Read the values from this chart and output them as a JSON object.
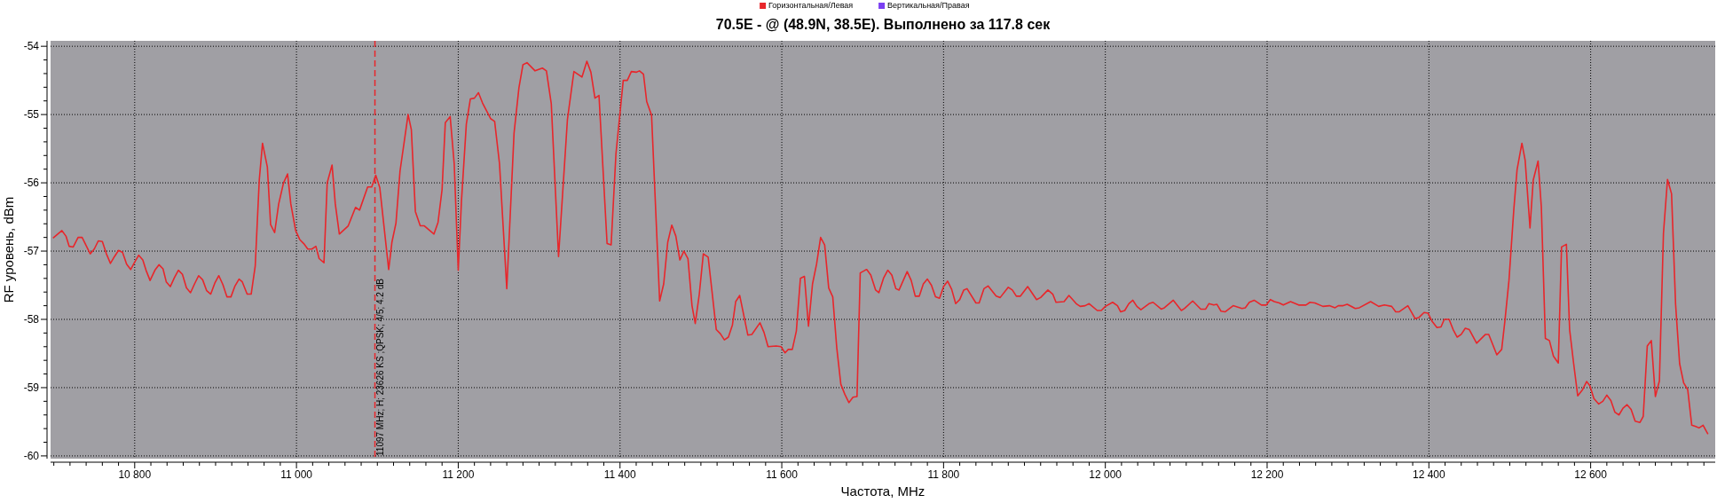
{
  "chart_data": {
    "type": "line",
    "title": "70.5E -  @  (48.9N, 38.5E). Выполнено за 117.8 сек",
    "xlabel": "Частота, MHz",
    "ylabel": "RF уровень, dBm",
    "xlim": [
      10696,
      12754
    ],
    "ylim": [
      -60.04,
      -53.92
    ],
    "xticks": [
      {
        "value": 10700,
        "label": null
      },
      {
        "value": 10720,
        "label": null
      },
      {
        "value": 10740,
        "label": null
      },
      {
        "value": 10760,
        "label": null
      },
      {
        "value": 10780,
        "label": null
      },
      {
        "value": 10800,
        "label": "10 800"
      },
      {
        "value": 10820,
        "label": null
      },
      {
        "value": 10840,
        "label": null
      },
      {
        "value": 10860,
        "label": null
      },
      {
        "value": 10880,
        "label": null
      },
      {
        "value": 10900,
        "label": null
      },
      {
        "value": 10920,
        "label": null
      },
      {
        "value": 10940,
        "label": null
      },
      {
        "value": 10960,
        "label": null
      },
      {
        "value": 10980,
        "label": null
      },
      {
        "value": 11000,
        "label": "11 000"
      },
      {
        "value": 11020,
        "label": null
      },
      {
        "value": 11040,
        "label": null
      },
      {
        "value": 11060,
        "label": null
      },
      {
        "value": 11080,
        "label": null
      },
      {
        "value": 11100,
        "label": null
      },
      {
        "value": 11120,
        "label": null
      },
      {
        "value": 11140,
        "label": null
      },
      {
        "value": 11160,
        "label": null
      },
      {
        "value": 11180,
        "label": null
      },
      {
        "value": 11200,
        "label": "11 200"
      },
      {
        "value": 11220,
        "label": null
      },
      {
        "value": 11240,
        "label": null
      },
      {
        "value": 11260,
        "label": null
      },
      {
        "value": 11280,
        "label": null
      },
      {
        "value": 11300,
        "label": null
      },
      {
        "value": 11320,
        "label": null
      },
      {
        "value": 11340,
        "label": null
      },
      {
        "value": 11360,
        "label": null
      },
      {
        "value": 11380,
        "label": null
      },
      {
        "value": 11400,
        "label": "11 400"
      },
      {
        "value": 11420,
        "label": null
      },
      {
        "value": 11440,
        "label": null
      },
      {
        "value": 11460,
        "label": null
      },
      {
        "value": 11480,
        "label": null
      },
      {
        "value": 11500,
        "label": null
      },
      {
        "value": 11520,
        "label": null
      },
      {
        "value": 11540,
        "label": null
      },
      {
        "value": 11560,
        "label": null
      },
      {
        "value": 11580,
        "label": null
      },
      {
        "value": 11600,
        "label": "11 600"
      },
      {
        "value": 11620,
        "label": null
      },
      {
        "value": 11640,
        "label": null
      },
      {
        "value": 11660,
        "label": null
      },
      {
        "value": 11680,
        "label": null
      },
      {
        "value": 11700,
        "label": null
      },
      {
        "value": 11720,
        "label": null
      },
      {
        "value": 11740,
        "label": null
      },
      {
        "value": 11760,
        "label": null
      },
      {
        "value": 11780,
        "label": null
      },
      {
        "value": 11800,
        "label": "11 800"
      },
      {
        "value": 11820,
        "label": null
      },
      {
        "value": 11840,
        "label": null
      },
      {
        "value": 11860,
        "label": null
      },
      {
        "value": 11880,
        "label": null
      },
      {
        "value": 11900,
        "label": null
      },
      {
        "value": 11920,
        "label": null
      },
      {
        "value": 11940,
        "label": null
      },
      {
        "value": 11960,
        "label": null
      },
      {
        "value": 11980,
        "label": null
      },
      {
        "value": 12000,
        "label": "12 000"
      },
      {
        "value": 12020,
        "label": null
      },
      {
        "value": 12040,
        "label": null
      },
      {
        "value": 12060,
        "label": null
      },
      {
        "value": 12080,
        "label": null
      },
      {
        "value": 12100,
        "label": null
      },
      {
        "value": 12120,
        "label": null
      },
      {
        "value": 12140,
        "label": null
      },
      {
        "value": 12160,
        "label": null
      },
      {
        "value": 12180,
        "label": null
      },
      {
        "value": 12200,
        "label": "12 200"
      },
      {
        "value": 12220,
        "label": null
      },
      {
        "value": 12240,
        "label": null
      },
      {
        "value": 12260,
        "label": null
      },
      {
        "value": 12280,
        "label": null
      },
      {
        "value": 12300,
        "label": null
      },
      {
        "value": 12320,
        "label": null
      },
      {
        "value": 12340,
        "label": null
      },
      {
        "value": 12360,
        "label": null
      },
      {
        "value": 12380,
        "label": null
      },
      {
        "value": 12400,
        "label": "12 400"
      },
      {
        "value": 12420,
        "label": null
      },
      {
        "value": 12440,
        "label": null
      },
      {
        "value": 12460,
        "label": null
      },
      {
        "value": 12480,
        "label": null
      },
      {
        "value": 12500,
        "label": null
      },
      {
        "value": 12520,
        "label": null
      },
      {
        "value": 12540,
        "label": null
      },
      {
        "value": 12560,
        "label": null
      },
      {
        "value": 12580,
        "label": null
      },
      {
        "value": 12600,
        "label": "12 600"
      },
      {
        "value": 12620,
        "label": null
      },
      {
        "value": 12640,
        "label": null
      },
      {
        "value": 12660,
        "label": null
      },
      {
        "value": 12680,
        "label": null
      },
      {
        "value": 12700,
        "label": null
      },
      {
        "value": 12720,
        "label": null
      },
      {
        "value": 12740,
        "label": null
      }
    ],
    "yticks": [
      -60,
      {
        "value": -59.8,
        "label": null
      },
      {
        "value": -59.6,
        "label": null
      },
      {
        "value": -59.4,
        "label": null
      },
      {
        "value": -59.2,
        "label": null
      },
      -59,
      {
        "value": -58.8,
        "label": null
      },
      {
        "value": -58.6,
        "label": null
      },
      {
        "value": -58.4,
        "label": null
      },
      {
        "value": -58.2,
        "label": null
      },
      -58,
      {
        "value": -57.8,
        "label": null
      },
      {
        "value": -57.6,
        "label": null
      },
      {
        "value": -57.4,
        "label": null
      },
      {
        "value": -57.2,
        "label": null
      },
      -57,
      {
        "value": -56.8,
        "label": null
      },
      {
        "value": -56.6,
        "label": null
      },
      {
        "value": -56.4,
        "label": null
      },
      {
        "value": -56.2,
        "label": null
      },
      -56,
      {
        "value": -55.8,
        "label": null
      },
      {
        "value": -55.6,
        "label": null
      },
      {
        "value": -55.4,
        "label": null
      },
      {
        "value": -55.2,
        "label": null
      },
      -55,
      {
        "value": -54.8,
        "label": null
      },
      {
        "value": -54.6,
        "label": null
      },
      {
        "value": -54.4,
        "label": null
      },
      {
        "value": -54.2,
        "label": null
      },
      -54
    ],
    "grid": true,
    "legend": "top",
    "marker": "none",
    "line_style": "solid",
    "ref_lines": [
      {
        "axis": "x",
        "value": 11097,
        "label": "11097 MHz; H; 23626 KS ;QPSK; 4/5; 4.2 dB",
        "color": "#e8262b",
        "line_style": "dashed"
      }
    ],
    "series": [
      {
        "name": "Горизонтальная/Левая",
        "color": "#e8262b",
        "x": [
          10699,
          10710,
          10715,
          10719,
          10724,
          10730,
          10735,
          10740,
          10745,
          10750,
          10755,
          10760,
          10765,
          10770,
          10775,
          10780,
          10785,
          10790,
          10795,
          10800,
          10805,
          10810,
          10814,
          10819,
          10825,
          10830,
          10835,
          10839,
          10844,
          10849,
          10854,
          10859,
          10864,
          10869,
          10874,
          10879,
          10884,
          10889,
          10894,
          10899,
          10904,
          10909,
          10914,
          10919,
          10924,
          10929,
          10933,
          10939,
          10944,
          10949,
          10954,
          10958,
          10964,
          10968,
          10973,
          10978,
          10984,
          10989,
          10993,
          10999,
          11004,
          11009,
          11014,
          11019,
          11024,
          11028,
          11034,
          11038,
          11044,
          11048,
          11053,
          11064,
          11073,
          11078,
          11088,
          11093,
          11098,
          11103,
          11114,
          11118,
          11123,
          11128,
          11138,
          11142,
          11147,
          11153,
          11158,
          11170,
          11175,
          11180,
          11184,
          11190,
          11195,
          11200,
          11204,
          11210,
          11215,
          11220,
          11225,
          11230,
          11240,
          11245,
          11251,
          11260,
          11269,
          11275,
          11280,
          11285,
          11295,
          11304,
          11309,
          11315,
          11324,
          11335,
          11343,
          11353,
          11359,
          11364,
          11369,
          11374,
          11384,
          11389,
          11395,
          11404,
          11409,
          11414,
          11420,
          11424,
          11429,
          11433,
          11439,
          11449,
          11454,
          11459,
          11464,
          11469,
          11474,
          11479,
          11484,
          11489,
          11493,
          11498,
          11503,
          11509,
          11519,
          11524,
          11529,
          11534,
          11539,
          11543,
          11548,
          11558,
          11563,
          11573,
          11578,
          11583,
          11593,
          11599,
          11604,
          11608,
          11613,
          11618,
          11623,
          11628,
          11633,
          11638,
          11643,
          11648,
          11653,
          11658,
          11663,
          11668,
          11673,
          11678,
          11683,
          11688,
          11693,
          11697,
          11703,
          11705,
          11710,
          11716,
          11720,
          11726,
          11731,
          11736,
          11741,
          11745,
          11755,
          11760,
          11765,
          11770,
          11775,
          11780,
          11785,
          11790,
          11795,
          11800,
          11805,
          11810,
          11815,
          11820,
          11825,
          11829,
          11840,
          11844,
          11850,
          11855,
          11865,
          11870,
          11880,
          11885,
          11890,
          11895,
          11904,
          11915,
          11920,
          11929,
          11935,
          11939,
          11949,
          11955,
          11964,
          11969,
          11975,
          11980,
          11990,
          11995,
          12000,
          12009,
          12015,
          12019,
          12024,
          12029,
          12034,
          12039,
          12044,
          12054,
          12059,
          12069,
          12073,
          12084,
          12094,
          12098,
          12108,
          12118,
          12124,
          12128,
          12134,
          12138,
          12143,
          12148,
          12158,
          12169,
          12173,
          12178,
          12184,
          12193,
          12199,
          12204,
          12209,
          12215,
          12220,
          12229,
          12239,
          12248,
          12253,
          12259,
          12269,
          12277,
          12284,
          12288,
          12294,
          12299,
          12309,
          12314,
          12328,
          12338,
          12345,
          12354,
          12359,
          12363,
          12374,
          12383,
          12388,
          12394,
          12399,
          12404,
          12410,
          12415,
          12419,
          12425,
          12430,
          12435,
          12440,
          12445,
          12450,
          12459,
          12470,
          12474,
          12484,
          12490,
          12494,
          12499,
          12505,
          12509,
          12515,
          12519,
          12525,
          12529,
          12535,
          12539,
          12544,
          12549,
          12554,
          12560,
          12564,
          12570,
          12574,
          12579,
          12584,
          12590,
          12595,
          12599,
          12604,
          12610,
          12615,
          12620,
          12625,
          12630,
          12635,
          12640,
          12645,
          12650,
          12655,
          12661,
          12665,
          12670,
          12675,
          12680,
          12685,
          12690,
          12695,
          12700,
          12705,
          12710,
          12715,
          12720,
          12725,
          12730,
          12734,
          12739,
          12745
        ],
        "values": [
          -56.81,
          -56.7,
          -56.78,
          -56.93,
          -56.94,
          -56.8,
          -56.8,
          -56.92,
          -57.04,
          -56.97,
          -56.85,
          -56.86,
          -57.04,
          -57.18,
          -57.08,
          -56.99,
          -57.02,
          -57.19,
          -57.27,
          -57.16,
          -57.06,
          -57.13,
          -57.28,
          -57.43,
          -57.28,
          -57.2,
          -57.26,
          -57.45,
          -57.52,
          -57.39,
          -57.28,
          -57.34,
          -57.54,
          -57.61,
          -57.48,
          -57.36,
          -57.42,
          -57.58,
          -57.63,
          -57.47,
          -57.36,
          -57.49,
          -57.67,
          -57.67,
          -57.51,
          -57.41,
          -57.45,
          -57.63,
          -57.63,
          -57.22,
          -55.96,
          -55.42,
          -55.77,
          -56.61,
          -56.73,
          -56.31,
          -56.0,
          -55.87,
          -56.31,
          -56.7,
          -56.83,
          -56.89,
          -56.97,
          -56.97,
          -56.93,
          -57.11,
          -57.17,
          -56.0,
          -55.74,
          -56.31,
          -56.75,
          -56.63,
          -56.36,
          -56.4,
          -56.06,
          -56.06,
          -55.89,
          -56.07,
          -57.27,
          -56.87,
          -56.59,
          -55.83,
          -55.0,
          -55.22,
          -56.42,
          -56.63,
          -56.63,
          -56.75,
          -56.58,
          -56.1,
          -55.12,
          -55.03,
          -55.72,
          -57.28,
          -56.26,
          -55.14,
          -54.77,
          -54.76,
          -54.68,
          -54.83,
          -55.06,
          -55.1,
          -55.72,
          -57.55,
          -55.27,
          -54.61,
          -54.27,
          -54.24,
          -54.36,
          -54.32,
          -54.36,
          -54.84,
          -57.08,
          -55.07,
          -54.37,
          -54.45,
          -54.22,
          -54.38,
          -54.76,
          -54.72,
          -56.89,
          -56.91,
          -55.57,
          -54.5,
          -54.5,
          -54.37,
          -54.38,
          -54.36,
          -54.41,
          -54.81,
          -55.01,
          -57.73,
          -57.48,
          -56.87,
          -56.62,
          -56.78,
          -57.13,
          -57.0,
          -57.11,
          -57.8,
          -58.06,
          -57.63,
          -57.04,
          -57.09,
          -58.15,
          -58.21,
          -58.3,
          -58.26,
          -58.08,
          -57.74,
          -57.65,
          -58.23,
          -58.22,
          -58.05,
          -58.19,
          -58.4,
          -58.39,
          -58.4,
          -58.49,
          -58.44,
          -58.44,
          -58.17,
          -57.4,
          -57.37,
          -58.1,
          -57.48,
          -57.19,
          -56.8,
          -56.91,
          -57.54,
          -57.67,
          -58.42,
          -58.95,
          -59.1,
          -59.22,
          -59.14,
          -59.13,
          -57.32,
          -57.28,
          -57.27,
          -57.35,
          -57.57,
          -57.61,
          -57.39,
          -57.28,
          -57.35,
          -57.55,
          -57.57,
          -57.3,
          -57.43,
          -57.66,
          -57.66,
          -57.48,
          -57.41,
          -57.5,
          -57.67,
          -57.69,
          -57.52,
          -57.44,
          -57.56,
          -57.77,
          -57.71,
          -57.57,
          -57.55,
          -57.76,
          -57.76,
          -57.55,
          -57.51,
          -57.66,
          -57.68,
          -57.53,
          -57.57,
          -57.66,
          -57.66,
          -57.52,
          -57.71,
          -57.68,
          -57.57,
          -57.63,
          -57.75,
          -57.74,
          -57.65,
          -57.77,
          -57.81,
          -57.8,
          -57.77,
          -57.87,
          -57.87,
          -57.81,
          -57.75,
          -57.8,
          -57.89,
          -57.87,
          -57.77,
          -57.72,
          -57.81,
          -57.86,
          -57.77,
          -57.75,
          -57.85,
          -57.83,
          -57.72,
          -57.87,
          -57.84,
          -57.73,
          -57.85,
          -57.85,
          -57.77,
          -57.79,
          -57.78,
          -57.88,
          -57.89,
          -57.8,
          -57.84,
          -57.83,
          -57.75,
          -57.72,
          -57.79,
          -57.79,
          -57.71,
          -57.74,
          -57.76,
          -57.79,
          -57.74,
          -57.79,
          -57.79,
          -57.75,
          -57.76,
          -57.81,
          -57.8,
          -57.83,
          -57.8,
          -57.8,
          -57.78,
          -57.84,
          -57.83,
          -57.74,
          -57.81,
          -57.79,
          -57.81,
          -57.89,
          -57.89,
          -57.8,
          -57.99,
          -57.97,
          -57.9,
          -57.91,
          -58.03,
          -58.12,
          -58.11,
          -58.0,
          -58.0,
          -58.15,
          -58.26,
          -58.22,
          -58.13,
          -58.15,
          -58.35,
          -58.22,
          -58.22,
          -58.52,
          -58.44,
          -58.02,
          -57.43,
          -56.39,
          -55.81,
          -55.42,
          -55.67,
          -56.66,
          -55.96,
          -55.68,
          -56.35,
          -58.28,
          -58.31,
          -58.54,
          -58.64,
          -56.94,
          -56.9,
          -58.15,
          -58.65,
          -59.12,
          -59.03,
          -58.91,
          -58.97,
          -59.16,
          -59.24,
          -59.2,
          -59.11,
          -59.19,
          -59.36,
          -59.4,
          -59.3,
          -59.25,
          -59.32,
          -59.49,
          -59.51,
          -59.42,
          -58.39,
          -58.31,
          -59.13,
          -58.9,
          -56.74,
          -55.95,
          -56.16,
          -57.78,
          -58.65,
          -58.93,
          -59.03,
          -59.55,
          -59.57,
          -59.59,
          -59.55,
          -59.68
        ]
      },
      {
        "name": "Вертикальная/Правая",
        "color": "#7b3ff2"
      }
    ]
  }
}
